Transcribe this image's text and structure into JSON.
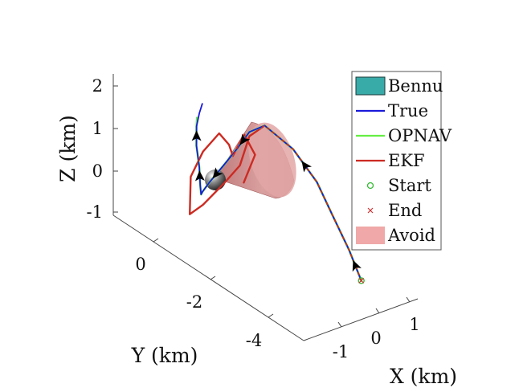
{
  "chart_data": {
    "type": "line",
    "projection": "3d",
    "grid": false,
    "legend_placement": "top-right",
    "xlabel": "X (km)",
    "ylabel": "Y (km)",
    "zlabel": "Z (km)",
    "xticks": [
      "-1",
      "0",
      "1"
    ],
    "yticks": [
      "0",
      "-2",
      "-4"
    ],
    "zticks": [
      "2",
      "1",
      "0",
      "-1"
    ],
    "xlim": [
      -1.4,
      1.4
    ],
    "ylim": [
      -5,
      1
    ],
    "zlim": [
      -1.2,
      2.4
    ],
    "colors": {
      "Bennu": "#38aaa8",
      "True": "#1a1adb",
      "OPNAV": "#66ee44",
      "EKF": "#cc2b22",
      "Start": "#33bb33",
      "End": "#cc3333",
      "Avoid": "#f0a8a8"
    },
    "legend": [
      {
        "key": "Bennu",
        "label": "Bennu",
        "marker": "patch"
      },
      {
        "key": "True",
        "label": "True",
        "marker": "line"
      },
      {
        "key": "OPNAV",
        "label": "OPNAV",
        "marker": "line"
      },
      {
        "key": "EKF",
        "label": "EKF",
        "marker": "line"
      },
      {
        "key": "Start",
        "label": "Start",
        "marker": "circle"
      },
      {
        "key": "End",
        "label": "End",
        "marker": "x"
      },
      {
        "key": "Avoid",
        "label": "Avoid",
        "marker": "patch"
      }
    ],
    "series": [
      {
        "name": "True",
        "points": [
          [
            0.92,
            -3.9,
            -1.15
          ],
          [
            0.9,
            -3.5,
            -0.6
          ],
          [
            0.85,
            -3.0,
            0.0
          ],
          [
            0.8,
            -2.5,
            0.6
          ],
          [
            0.7,
            -1.8,
            1.1
          ],
          [
            0.55,
            -1.0,
            1.35
          ],
          [
            0.45,
            -0.6,
            1.05
          ],
          [
            0.35,
            -0.3,
            0.55
          ],
          [
            0.2,
            0.0,
            0.05
          ],
          [
            0.0,
            0.2,
            -0.35
          ],
          [
            -0.15,
            0.25,
            -0.55
          ],
          [
            -0.3,
            0.1,
            -0.5
          ],
          [
            -0.4,
            0.0,
            -0.2
          ],
          [
            -0.5,
            -0.1,
            0.3
          ],
          [
            -0.65,
            -0.2,
            0.9
          ],
          [
            -0.8,
            -0.4,
            1.5
          ],
          [
            -0.95,
            -0.7,
            2.0
          ],
          [
            -1.1,
            -1.0,
            2.4
          ]
        ]
      },
      {
        "name": "OPNAV",
        "points": [
          [
            0.92,
            -3.9,
            -1.15
          ],
          [
            0.9,
            -3.5,
            -0.6
          ],
          [
            0.85,
            -3.0,
            0.0
          ],
          [
            0.8,
            -2.5,
            0.6
          ],
          [
            0.7,
            -1.8,
            1.1
          ],
          [
            0.55,
            -1.0,
            1.35
          ],
          [
            0.45,
            -0.6,
            1.05
          ],
          [
            0.35,
            -0.3,
            0.55
          ],
          [
            0.2,
            0.0,
            0.05
          ],
          [
            0.0,
            0.2,
            -0.35
          ],
          [
            -0.15,
            0.25,
            -0.55
          ],
          [
            -0.3,
            0.1,
            -0.5
          ],
          [
            -0.4,
            0.0,
            -0.2
          ],
          [
            -0.5,
            -0.1,
            0.3
          ],
          [
            -0.65,
            -0.2,
            0.9
          ],
          [
            -0.8,
            -0.4,
            1.5
          ],
          [
            -0.9,
            -0.55,
            1.8
          ]
        ]
      },
      {
        "name": "EKF",
        "points": [
          [
            0.92,
            -3.9,
            -1.15
          ],
          [
            0.9,
            -3.5,
            -0.6
          ],
          [
            0.85,
            -3.0,
            0.0
          ],
          [
            0.8,
            -2.5,
            0.6
          ],
          [
            0.7,
            -1.8,
            1.1
          ],
          [
            0.55,
            -1.0,
            1.35
          ],
          [
            0.45,
            -0.6,
            0.95
          ],
          [
            0.35,
            -0.4,
            0.2
          ],
          [
            0.15,
            -0.1,
            -0.3
          ],
          [
            -0.1,
            0.3,
            -0.9
          ],
          [
            -0.3,
            0.5,
            -1.15
          ],
          [
            -0.35,
            0.4,
            -0.2
          ],
          [
            -0.25,
            0.1,
            0.5
          ],
          [
            -0.05,
            -0.2,
            1.0
          ],
          [
            0.1,
            -0.35,
            0.75
          ],
          [
            0.2,
            -0.35,
            0.45
          ],
          [
            0.35,
            -0.55,
            1.0
          ],
          [
            0.45,
            -0.8,
            0.6
          ],
          [
            0.3,
            -0.6,
            -0.1
          ]
        ]
      }
    ],
    "start": [
      0.92,
      -3.9,
      -1.15
    ],
    "end": [
      0.92,
      -3.9,
      -1.15
    ],
    "bennu_center": [
      0,
      0,
      0
    ]
  }
}
